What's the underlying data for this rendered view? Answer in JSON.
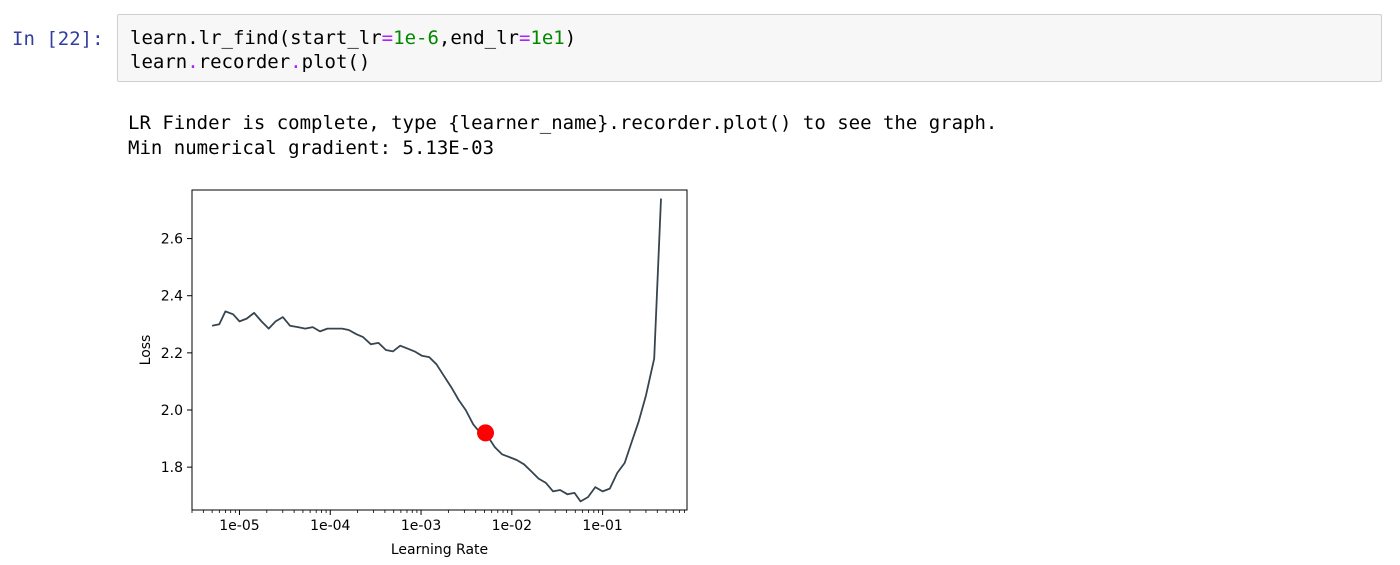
{
  "cell": {
    "prompt": "In [22]:",
    "code": {
      "line1": {
        "call": "learn.lr_find(start_lr",
        "eq1": "=",
        "start_val": "1e-6",
        "comma_end": ",end_lr",
        "eq2": "=",
        "end_val": "1e1",
        "close": ")"
      },
      "line2": {
        "obj": "learn",
        "dot1": ".",
        "attr": "recorder",
        "dot2": ".",
        "call": "plot()"
      }
    }
  },
  "output": {
    "line1": "LR Finder is complete, type {learner_name}.recorder.plot() to see the graph.",
    "line2": "Min numerical gradient: 5.13E-03"
  },
  "chart_data": {
    "type": "line",
    "title": "",
    "xlabel": "Learning Rate",
    "ylabel": "Loss",
    "xscale": "log",
    "xlim": [
      3e-06,
      0.85
    ],
    "ylim": [
      1.65,
      2.77
    ],
    "xticks": [
      {
        "value": 1e-05,
        "label": "1e-05"
      },
      {
        "value": 0.0001,
        "label": "1e-04"
      },
      {
        "value": 0.001,
        "label": "1e-03"
      },
      {
        "value": 0.01,
        "label": "1e-02"
      },
      {
        "value": 0.1,
        "label": "1e-01"
      }
    ],
    "yticks": [
      {
        "value": 1.8,
        "label": "1.8"
      },
      {
        "value": 2.0,
        "label": "2.0"
      },
      {
        "value": 2.2,
        "label": "2.2"
      },
      {
        "value": 2.4,
        "label": "2.4"
      },
      {
        "value": 2.6,
        "label": "2.6"
      }
    ],
    "grid": false,
    "line_color": "#36454f",
    "marker": {
      "x": 0.00513,
      "y": 1.92,
      "color": "#ff0000"
    },
    "series": [
      {
        "x": [
          5e-06,
          6e-06,
          7e-06,
          8.5e-06,
          1e-05,
          1.2e-05,
          1.45e-05,
          1.75e-05,
          2.1e-05,
          2.5e-05,
          3e-05,
          3.6e-05,
          4.4e-05,
          5.3e-05,
          6.4e-05,
          7.7e-05,
          9.3e-05,
          0.000112,
          0.000135,
          0.00016,
          0.000195,
          0.00023,
          0.00028,
          0.00034,
          0.00041,
          0.00049,
          0.00059,
          0.00071,
          0.00085,
          0.00102,
          0.00123,
          0.00148,
          0.00178,
          0.00215,
          0.0026,
          0.0031,
          0.00375,
          0.0045,
          0.00513,
          0.0065,
          0.0078,
          0.0094,
          0.0113,
          0.0136,
          0.0164,
          0.0197,
          0.0237,
          0.0285,
          0.034,
          0.041,
          0.049,
          0.057,
          0.069,
          0.083,
          0.1,
          0.12,
          0.145,
          0.175,
          0.21,
          0.25,
          0.3,
          0.37,
          0.44
        ],
        "y": [
          2.295,
          2.3,
          2.345,
          2.335,
          2.31,
          2.32,
          2.34,
          2.31,
          2.285,
          2.31,
          2.325,
          2.295,
          2.29,
          2.285,
          2.29,
          2.275,
          2.285,
          2.285,
          2.285,
          2.28,
          2.265,
          2.255,
          2.23,
          2.235,
          2.21,
          2.205,
          2.225,
          2.215,
          2.205,
          2.19,
          2.185,
          2.16,
          2.12,
          2.08,
          2.035,
          2.0,
          1.95,
          1.92,
          1.92,
          1.87,
          1.845,
          1.835,
          1.825,
          1.81,
          1.785,
          1.76,
          1.745,
          1.715,
          1.72,
          1.705,
          1.71,
          1.68,
          1.695,
          1.73,
          1.715,
          1.725,
          1.78,
          1.815,
          1.89,
          1.96,
          2.05,
          2.18,
          2.74
        ]
      }
    ]
  }
}
